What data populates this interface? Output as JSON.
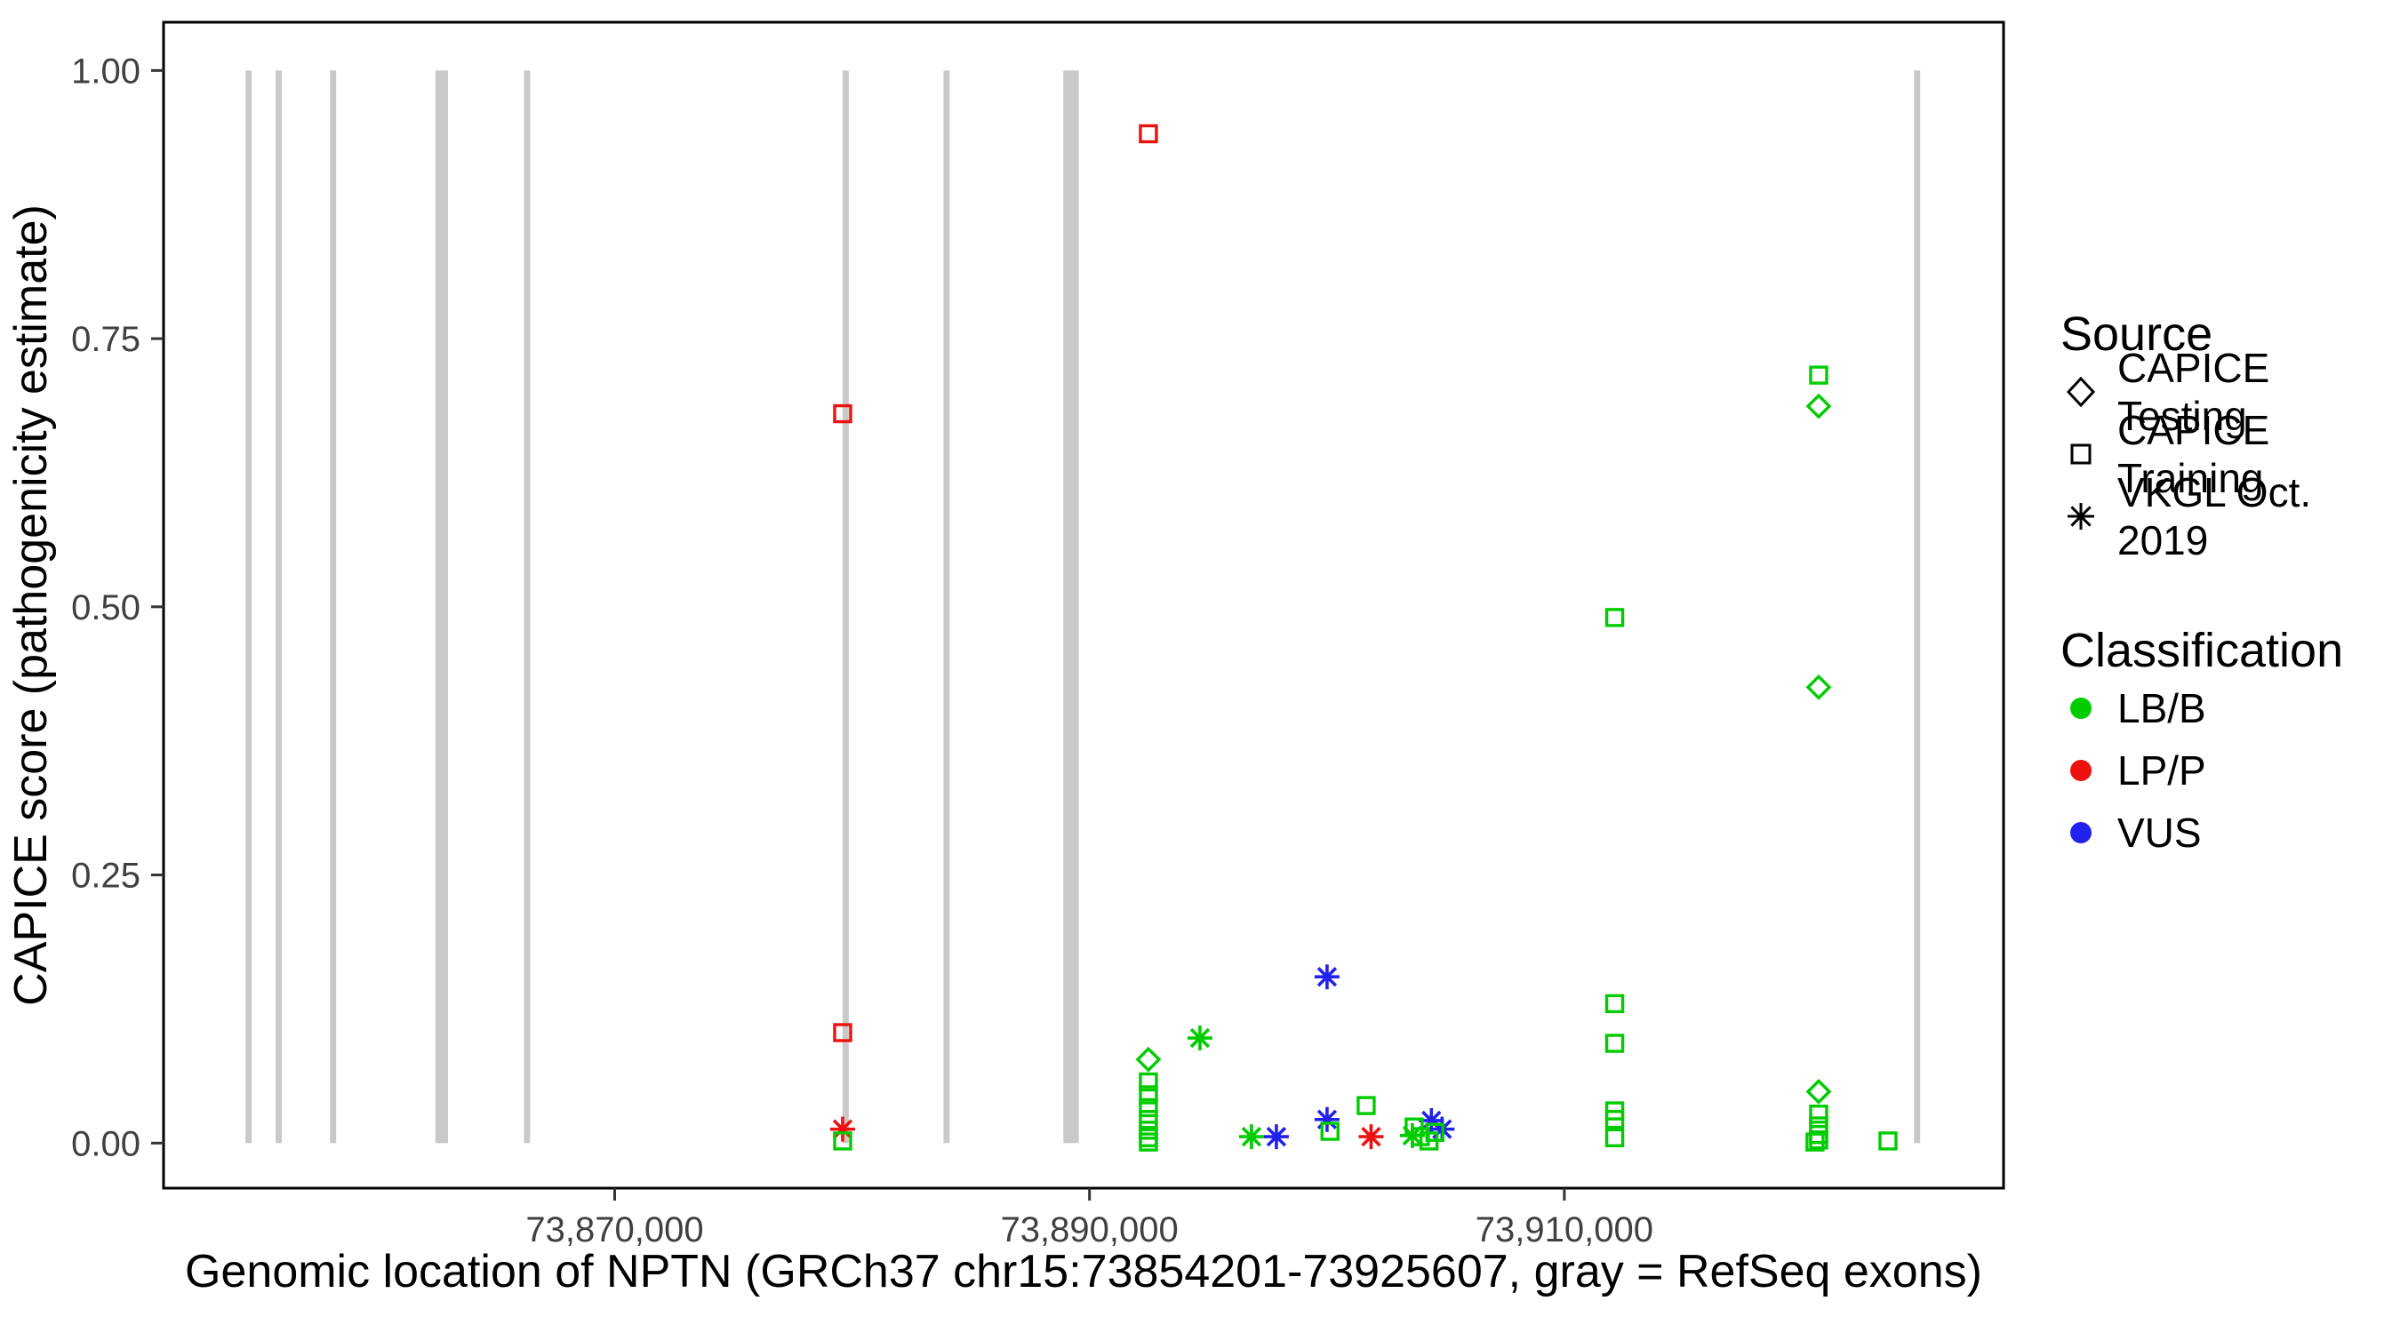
{
  "chart_data": {
    "type": "scatter",
    "title": "",
    "xlabel": "Genomic location of NPTN (GRCh37 chr15:73854201-73925607, gray = RefSeq exons)",
    "ylabel": "CAPICE score (pathogenicity estimate)",
    "xlim": [
      73851000,
      73928500
    ],
    "ylim": [
      -0.042,
      1.045
    ],
    "grid": false,
    "legend_position": "right",
    "exon_color": "#c9c9c9",
    "x_ticks": [
      {
        "value": 73870000,
        "label": "73,870,000"
      },
      {
        "value": 73890000,
        "label": "73,890,000"
      },
      {
        "value": 73910000,
        "label": "73,910,000"
      }
    ],
    "y_ticks": [
      {
        "value": 0.0,
        "label": "0.00"
      },
      {
        "value": 0.25,
        "label": "0.25"
      },
      {
        "value": 0.5,
        "label": "0.50"
      },
      {
        "value": 0.75,
        "label": "0.75"
      },
      {
        "value": 1.0,
        "label": "1.00"
      }
    ],
    "exons": [
      {
        "start": 73854450,
        "end": 73854710
      },
      {
        "start": 73855720,
        "end": 73855980
      },
      {
        "start": 73858010,
        "end": 73858270
      },
      {
        "start": 73862450,
        "end": 73862980
      },
      {
        "start": 73866180,
        "end": 73866440
      },
      {
        "start": 73879600,
        "end": 73879860
      },
      {
        "start": 73883850,
        "end": 73884110
      },
      {
        "start": 73888900,
        "end": 73889550
      },
      {
        "start": 73924730,
        "end": 73924990
      }
    ],
    "colors": {
      "LB/B": "#00cc00",
      "LP/P": "#ee1111",
      "VUS": "#2222ee"
    },
    "shapes": {
      "CAPICE Testing": "diamond",
      "CAPICE Training": "square",
      "VKGL Oct. 2019": "asterisk"
    },
    "points": [
      {
        "x": 73892481,
        "y": 0.941,
        "source": "CAPICE Training",
        "classification": "LP/P"
      },
      {
        "x": 73879603,
        "y": 0.68,
        "source": "CAPICE Training",
        "classification": "LP/P"
      },
      {
        "x": 73879603,
        "y": 0.103,
        "source": "CAPICE Training",
        "classification": "LP/P"
      },
      {
        "x": 73879603,
        "y": 0.013,
        "source": "VKGL Oct. 2019",
        "classification": "LP/P"
      },
      {
        "x": 73901860,
        "y": 0.006,
        "source": "VKGL Oct. 2019",
        "classification": "LP/P"
      },
      {
        "x": 73900006,
        "y": 0.155,
        "source": "VKGL Oct. 2019",
        "classification": "VUS"
      },
      {
        "x": 73897872,
        "y": 0.006,
        "source": "VKGL Oct. 2019",
        "classification": "VUS"
      },
      {
        "x": 73900006,
        "y": 0.022,
        "source": "VKGL Oct. 2019",
        "classification": "VUS"
      },
      {
        "x": 73904400,
        "y": 0.021,
        "source": "VKGL Oct. 2019",
        "classification": "VUS"
      },
      {
        "x": 73904850,
        "y": 0.013,
        "source": "VKGL Oct. 2019",
        "classification": "VUS"
      },
      {
        "x": 73894652,
        "y": 0.098,
        "source": "VKGL Oct. 2019",
        "classification": "LB/B"
      },
      {
        "x": 73896824,
        "y": 0.006,
        "source": "VKGL Oct. 2019",
        "classification": "LB/B"
      },
      {
        "x": 73903600,
        "y": 0.007,
        "source": "VKGL Oct. 2019",
        "classification": "LB/B"
      },
      {
        "x": 73920712,
        "y": 0.687,
        "source": "CAPICE Testing",
        "classification": "LB/B"
      },
      {
        "x": 73920712,
        "y": 0.425,
        "source": "CAPICE Testing",
        "classification": "LB/B"
      },
      {
        "x": 73892481,
        "y": 0.078,
        "source": "CAPICE Testing",
        "classification": "LB/B"
      },
      {
        "x": 73920712,
        "y": 0.048,
        "source": "CAPICE Testing",
        "classification": "LB/B"
      },
      {
        "x": 73920712,
        "y": 0.716,
        "source": "CAPICE Training",
        "classification": "LB/B"
      },
      {
        "x": 73912121,
        "y": 0.49,
        "source": "CAPICE Training",
        "classification": "LB/B"
      },
      {
        "x": 73912121,
        "y": 0.13,
        "source": "CAPICE Training",
        "classification": "LB/B"
      },
      {
        "x": 73912121,
        "y": 0.093,
        "source": "CAPICE Training",
        "classification": "LB/B"
      },
      {
        "x": 73892481,
        "y": 0.057,
        "source": "CAPICE Training",
        "classification": "LB/B"
      },
      {
        "x": 73892481,
        "y": 0.045,
        "source": "CAPICE Training",
        "classification": "LB/B"
      },
      {
        "x": 73892481,
        "y": 0.033,
        "source": "CAPICE Training",
        "classification": "LB/B"
      },
      {
        "x": 73892481,
        "y": 0.022,
        "source": "CAPICE Training",
        "classification": "LB/B"
      },
      {
        "x": 73892481,
        "y": 0.012,
        "source": "CAPICE Training",
        "classification": "LB/B"
      },
      {
        "x": 73892481,
        "y": 0.005,
        "source": "CAPICE Training",
        "classification": "LB/B"
      },
      {
        "x": 73892481,
        "y": 0.001,
        "source": "CAPICE Training",
        "classification": "LB/B"
      },
      {
        "x": 73900130,
        "y": 0.011,
        "source": "CAPICE Training",
        "classification": "LB/B"
      },
      {
        "x": 73901653,
        "y": 0.035,
        "source": "CAPICE Training",
        "classification": "LB/B"
      },
      {
        "x": 73903675,
        "y": 0.015,
        "source": "CAPICE Training",
        "classification": "LB/B"
      },
      {
        "x": 73903937,
        "y": 0.006,
        "source": "CAPICE Training",
        "classification": "LB/B"
      },
      {
        "x": 73904300,
        "y": 0.002,
        "source": "CAPICE Training",
        "classification": "LB/B"
      },
      {
        "x": 73904550,
        "y": 0.01,
        "source": "CAPICE Training",
        "classification": "LB/B"
      },
      {
        "x": 73912121,
        "y": 0.03,
        "source": "CAPICE Training",
        "classification": "LB/B"
      },
      {
        "x": 73912121,
        "y": 0.022,
        "source": "CAPICE Training",
        "classification": "LB/B"
      },
      {
        "x": 73912121,
        "y": 0.005,
        "source": "CAPICE Training",
        "classification": "LB/B"
      },
      {
        "x": 73920712,
        "y": 0.027,
        "source": "CAPICE Training",
        "classification": "LB/B"
      },
      {
        "x": 73920712,
        "y": 0.016,
        "source": "CAPICE Training",
        "classification": "LB/B"
      },
      {
        "x": 73920712,
        "y": 0.008,
        "source": "CAPICE Training",
        "classification": "LB/B"
      },
      {
        "x": 73920712,
        "y": 0.003,
        "source": "CAPICE Training",
        "classification": "LB/B"
      },
      {
        "x": 73920560,
        "y": 0.001,
        "source": "CAPICE Training",
        "classification": "LB/B"
      },
      {
        "x": 73923632,
        "y": 0.002,
        "source": "CAPICE Training",
        "classification": "LB/B"
      },
      {
        "x": 73879603,
        "y": 0.002,
        "source": "CAPICE Training",
        "classification": "LB/B"
      }
    ],
    "legend": {
      "source": {
        "title": "Source",
        "items": [
          {
            "label": "CAPICE Testing",
            "shape": "diamond"
          },
          {
            "label": "CAPICE Training",
            "shape": "square"
          },
          {
            "label": "VKGL Oct. 2019",
            "shape": "asterisk"
          }
        ]
      },
      "classification": {
        "title": "Classification",
        "items": [
          {
            "label": "LB/B",
            "color": "#00cc00"
          },
          {
            "label": "LP/P",
            "color": "#ee1111"
          },
          {
            "label": "VUS",
            "color": "#2222ee"
          }
        ]
      }
    }
  }
}
